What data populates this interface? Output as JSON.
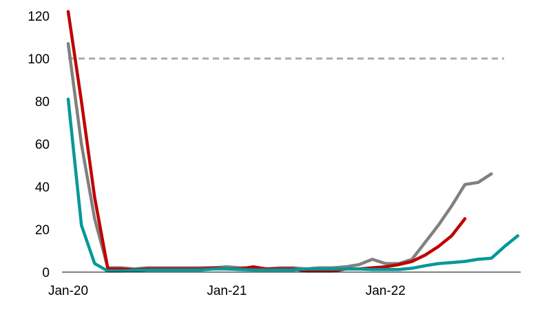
{
  "chart_data": {
    "type": "line",
    "title": "",
    "xlabel": "",
    "ylabel": "",
    "x_tick_labels": [
      {
        "label": "Jan-20",
        "month_index": 0
      },
      {
        "label": "Jan-21",
        "month_index": 12
      },
      {
        "label": "Jan-22",
        "month_index": 24
      }
    ],
    "y_tick_labels": [
      "0",
      "20",
      "40",
      "60",
      "80",
      "100",
      "120"
    ],
    "y_ticks": [
      0,
      20,
      40,
      60,
      80,
      100,
      120
    ],
    "ylim": [
      0,
      120
    ],
    "x_range_months": [
      0,
      35
    ],
    "grid": false,
    "reference_line": {
      "y": 100,
      "style": "dashed",
      "color": "#aaaaaa"
    },
    "series": [
      {
        "color": "#c00000",
        "x": [
          0,
          1,
          2,
          3,
          4,
          5,
          6,
          7,
          8,
          9,
          10,
          11,
          12,
          13,
          14,
          15,
          16,
          17,
          18,
          19,
          20,
          21,
          22,
          23,
          24,
          25,
          26,
          27,
          28,
          29,
          30
        ],
        "values": [
          122,
          80,
          35,
          1.5,
          1.5,
          1,
          1.5,
          1.5,
          1.5,
          1.5,
          1.5,
          2,
          1.5,
          1.5,
          2.5,
          1.5,
          1.5,
          1.5,
          0.5,
          0.5,
          0.5,
          1.5,
          1.5,
          2,
          2.5,
          3.5,
          5,
          8,
          12,
          17,
          25
        ]
      },
      {
        "color": "#808080",
        "x": [
          0,
          1,
          2,
          3,
          4,
          5,
          6,
          7,
          8,
          9,
          10,
          11,
          12,
          13,
          14,
          15,
          16,
          17,
          18,
          19,
          20,
          21,
          22,
          23,
          24,
          25,
          26,
          27,
          28,
          29,
          30,
          31,
          32
        ],
        "values": [
          107,
          60,
          25,
          2,
          2,
          1.5,
          2,
          2,
          2,
          2,
          2,
          2,
          2.5,
          2,
          2,
          1.5,
          2,
          2,
          1.5,
          2,
          2,
          2.5,
          3.5,
          6,
          4,
          4,
          6,
          14,
          22,
          31,
          41,
          42,
          46
        ]
      },
      {
        "color": "#009999",
        "x": [
          0,
          1,
          2,
          3,
          4,
          5,
          6,
          7,
          8,
          9,
          10,
          11,
          12,
          13,
          14,
          15,
          16,
          17,
          18,
          19,
          20,
          21,
          22,
          23,
          24,
          25,
          26,
          27,
          28,
          29,
          30,
          31,
          32,
          33,
          34
        ],
        "values": [
          81,
          22,
          4,
          0.5,
          0.5,
          0.8,
          1,
          1,
          1,
          1,
          1,
          1.5,
          1.5,
          1.2,
          1,
          1,
          1,
          1,
          1.5,
          1.5,
          1.5,
          1.5,
          1.5,
          1.2,
          1.2,
          1.2,
          1.8,
          3,
          4,
          4.5,
          5,
          6,
          6.5,
          12,
          17
        ]
      }
    ]
  }
}
